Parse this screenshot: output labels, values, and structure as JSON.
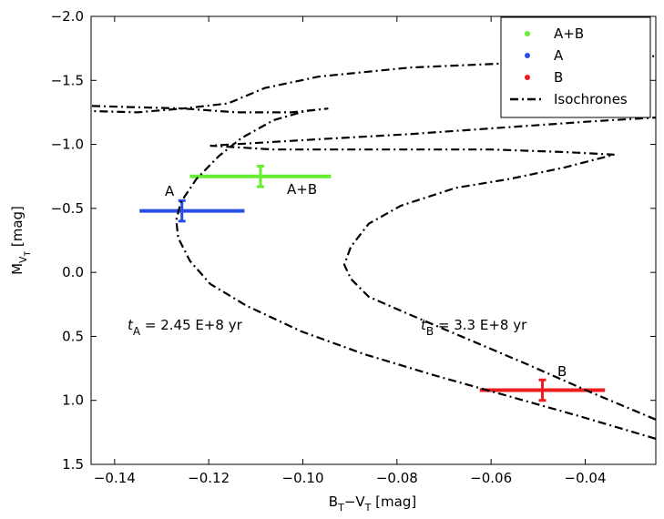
{
  "chart_data": {
    "type": "scatter",
    "x_label": [
      "B",
      "T",
      "−V",
      "T",
      " [mag]"
    ],
    "y_label": [
      "M",
      "V",
      "T",
      " [mag]"
    ],
    "xlim": [
      -0.145,
      -0.025
    ],
    "ylim": [
      -2,
      1.5
    ],
    "y_inverted": true,
    "xticks": [
      {
        "value": -0.14,
        "label": "−0.14"
      },
      {
        "value": -0.12,
        "label": "−0.12"
      },
      {
        "value": -0.1,
        "label": "−0.10"
      },
      {
        "value": -0.08,
        "label": "−0.08"
      },
      {
        "value": -0.06,
        "label": "−0.06"
      },
      {
        "value": -0.04,
        "label": "−0.04"
      }
    ],
    "yticks": [
      {
        "value": -2,
        "label": "−2.0"
      },
      {
        "value": -1.5,
        "label": "−1.5"
      },
      {
        "value": -1,
        "label": "−1.0"
      },
      {
        "value": -0.5,
        "label": "−0.5"
      },
      {
        "value": 0,
        "label": "0.0"
      },
      0.5,
      {
        "value": 1,
        "label": "1.0"
      },
      {
        "value": 1.5,
        "label": "1.5"
      }
    ],
    "legend": "upper right",
    "series": [
      {
        "name": "A+B",
        "color": "#66ee33",
        "x": [
          -0.109
        ],
        "y": [
          -0.75
        ],
        "xerr": [
          [
            0.015,
            0.015
          ]
        ],
        "yerr": [
          0.08
        ]
      },
      {
        "name": "A",
        "color": "#2a4fe6",
        "x": [
          -0.1257
        ],
        "y": [
          -0.48
        ],
        "xerr": [
          [
            0.009,
            0.0133
          ]
        ],
        "yerr": [
          0.08
        ]
      },
      {
        "name": "B",
        "color": "#ee1c1c",
        "x": [
          -0.0491
        ],
        "y": [
          0.92
        ],
        "xerr": [
          [
            0.0133,
            0.0133
          ]
        ],
        "yerr": [
          0.08
        ]
      },
      {
        "name": "Isochrones",
        "type": "line",
        "color": "#000000",
        "linestyle": "dashdot",
        "x": [
          -0.025,
          -0.0406,
          -0.056,
          -0.0715,
          -0.0869,
          -0.1004,
          -0.112,
          -0.1197,
          -0.124,
          -0.1265,
          -0.1269,
          -0.1259,
          -0.1226,
          -0.1178,
          -0.113,
          -0.1062,
          -0.0995,
          -0.0946,
          -0.1024,
          -0.114,
          -0.1255,
          -0.1352,
          -0.1448,
          null,
          -0.1448,
          -0.1255,
          -0.1159,
          -0.1081,
          -0.0966,
          -0.0773,
          -0.0522,
          -0.0251,
          null,
          -0.025,
          -0.0386,
          -0.0522,
          -0.0657,
          -0.0773,
          -0.086,
          -0.0898,
          -0.0912,
          -0.0898,
          -0.086,
          -0.0792,
          -0.0676,
          -0.056,
          -0.0444,
          -0.0338,
          -0.0444,
          -0.0599,
          -0.0753,
          -0.0908,
          -0.1062,
          -0.1197,
          -0.0966,
          -0.0773,
          -0.058,
          -0.0386,
          -0.025
        ],
        "y": [
          1.3,
          1.13,
          0.97,
          0.81,
          0.64,
          0.46,
          0.26,
          0.09,
          -0.09,
          -0.27,
          -0.41,
          -0.55,
          -0.73,
          -0.91,
          -1.05,
          -1.19,
          -1.26,
          -1.28,
          -1.25,
          -1.25,
          -1.28,
          -1.25,
          -1.26,
          null,
          -1.3,
          -1.28,
          -1.32,
          -1.44,
          -1.53,
          -1.6,
          -1.64,
          -1.69,
          null,
          1.15,
          0.94,
          0.72,
          0.51,
          0.33,
          0.19,
          0.05,
          -0.06,
          -0.2,
          -0.38,
          -0.52,
          -0.66,
          -0.73,
          -0.82,
          -0.92,
          -0.94,
          -0.96,
          -0.96,
          -0.96,
          -0.96,
          -0.99,
          -1.04,
          -1.08,
          -1.13,
          -1.18,
          -1.21
        ]
      }
    ],
    "annotations": [
      [
        "A"
      ],
      [
        "A+B"
      ],
      [
        "B"
      ],
      [
        "t",
        "A",
        " = 2.45 E+8 yr"
      ],
      [
        "t",
        "B",
        " = 3.3 E+8 yr"
      ]
    ]
  }
}
